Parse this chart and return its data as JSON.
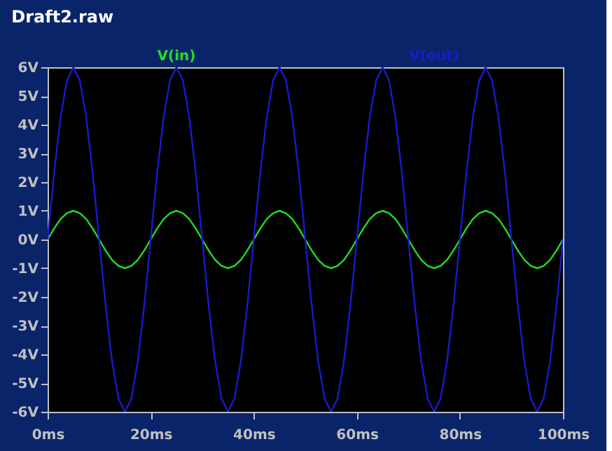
{
  "chart_data": {
    "type": "line",
    "title": "Draft2.raw",
    "legend": "top",
    "grid": false,
    "marker": "none",
    "line_style": "solid",
    "xlim": [
      0,
      100
    ],
    "xticks": [
      {
        "value": 0,
        "label": "0ms"
      },
      {
        "value": 20,
        "label": "20ms"
      },
      {
        "value": 40,
        "label": "40ms"
      },
      {
        "value": 60,
        "label": "60ms"
      },
      {
        "value": 80,
        "label": "80ms"
      },
      {
        "value": 100,
        "label": "100ms"
      }
    ],
    "ylim": [
      -6,
      6
    ],
    "yticks": [
      {
        "value": 6,
        "label": "6V"
      },
      {
        "value": 5,
        "label": "5V"
      },
      {
        "value": 4,
        "label": "4V"
      },
      {
        "value": 3,
        "label": "3V"
      },
      {
        "value": 2,
        "label": "2V"
      },
      {
        "value": 1,
        "label": "1V"
      },
      {
        "value": 0,
        "label": "0V"
      },
      {
        "value": -1,
        "label": "-1V"
      },
      {
        "value": -2,
        "label": "-2V"
      },
      {
        "value": -3,
        "label": "-3V"
      },
      {
        "value": -4,
        "label": "-4V"
      },
      {
        "value": -5,
        "label": "-5V"
      },
      {
        "value": -6,
        "label": "-6V"
      }
    ],
    "x": [
      0,
      1.25,
      2.5,
      3.75,
      5,
      6.25,
      7.5,
      8.75,
      10,
      11.25,
      12.5,
      13.75,
      15,
      16.25,
      17.5,
      18.75,
      20,
      21.25,
      22.5,
      23.75,
      25,
      26.25,
      27.5,
      28.75,
      30,
      31.25,
      32.5,
      33.75,
      35,
      36.25,
      37.5,
      38.75,
      40,
      41.25,
      42.5,
      43.75,
      45,
      46.25,
      47.5,
      48.75,
      50,
      51.25,
      52.5,
      53.75,
      55,
      56.25,
      57.5,
      58.75,
      60,
      61.25,
      62.5,
      63.75,
      65,
      66.25,
      67.5,
      68.75,
      70,
      71.25,
      72.5,
      73.75,
      75,
      76.25,
      77.5,
      78.75,
      80,
      81.25,
      82.5,
      83.75,
      85,
      86.25,
      87.5,
      88.75,
      90,
      91.25,
      92.5,
      93.75,
      95,
      96.25,
      97.5,
      98.75,
      100
    ],
    "series": [
      {
        "name": "V(in)",
        "color": "#22dd22",
        "values": [
          0,
          0.38,
          0.71,
          0.92,
          1,
          0.92,
          0.71,
          0.38,
          0,
          -0.38,
          -0.71,
          -0.92,
          -1,
          -0.92,
          -0.71,
          -0.38,
          0,
          0.38,
          0.71,
          0.92,
          1,
          0.92,
          0.71,
          0.38,
          0,
          -0.38,
          -0.71,
          -0.92,
          -1,
          -0.92,
          -0.71,
          -0.38,
          0,
          0.38,
          0.71,
          0.92,
          1,
          0.92,
          0.71,
          0.38,
          0,
          -0.38,
          -0.71,
          -0.92,
          -1,
          -0.92,
          -0.71,
          -0.38,
          0,
          0.38,
          0.71,
          0.92,
          1,
          0.92,
          0.71,
          0.38,
          0,
          -0.38,
          -0.71,
          -0.92,
          -1,
          -0.92,
          -0.71,
          -0.38,
          0,
          0.38,
          0.71,
          0.92,
          1,
          0.92,
          0.71,
          0.38,
          0,
          -0.38,
          -0.71,
          -0.92,
          -1,
          -0.92,
          -0.71,
          -0.38,
          0
        ]
      },
      {
        "name": "V(out)",
        "color": "#1a1acc",
        "values": [
          0,
          2.3,
          4.24,
          5.54,
          6,
          5.54,
          4.24,
          2.3,
          0,
          -2.3,
          -4.24,
          -5.54,
          -6,
          -5.54,
          -4.24,
          -2.3,
          0,
          2.3,
          4.24,
          5.54,
          6,
          5.54,
          4.24,
          2.3,
          0,
          -2.3,
          -4.24,
          -5.54,
          -6,
          -5.54,
          -4.24,
          -2.3,
          0,
          2.3,
          4.24,
          5.54,
          6,
          5.54,
          4.24,
          2.3,
          0,
          -2.3,
          -4.24,
          -5.54,
          -6,
          -5.54,
          -4.24,
          -2.3,
          0,
          2.3,
          4.24,
          5.54,
          6,
          5.54,
          4.24,
          2.3,
          0,
          -2.3,
          -4.24,
          -5.54,
          -6,
          -5.54,
          -4.24,
          -2.3,
          0,
          2.3,
          4.24,
          5.54,
          6,
          5.54,
          4.24,
          2.3,
          0,
          -2.3,
          -4.24,
          -5.54,
          -6,
          -5.54,
          -4.24,
          -2.3,
          0
        ]
      }
    ]
  }
}
